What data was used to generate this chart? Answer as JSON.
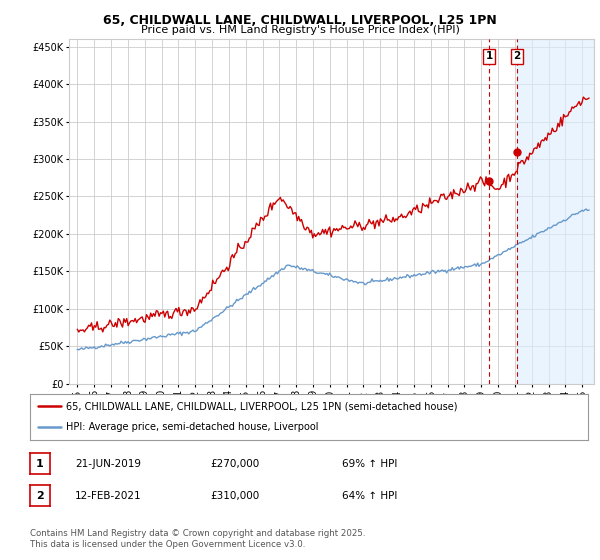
{
  "title_line1": "65, CHILDWALL LANE, CHILDWALL, LIVERPOOL, L25 1PN",
  "title_line2": "Price paid vs. HM Land Registry's House Price Index (HPI)",
  "legend_line1": "65, CHILDWALL LANE, CHILDWALL, LIVERPOOL, L25 1PN (semi-detached house)",
  "legend_line2": "HPI: Average price, semi-detached house, Liverpool",
  "footer": "Contains HM Land Registry data © Crown copyright and database right 2025.\nThis data is licensed under the Open Government Licence v3.0.",
  "sale1_date": "21-JUN-2019",
  "sale1_price": "£270,000",
  "sale1_hpi": "69% ↑ HPI",
  "sale2_date": "12-FEB-2021",
  "sale2_price": "£310,000",
  "sale2_hpi": "64% ↑ HPI",
  "red_color": "#cc0000",
  "blue_color": "#6699cc",
  "shade_color": "#ddeeff",
  "marker1_x": 2019.47,
  "marker1_y": 270000,
  "marker2_x": 2021.12,
  "marker2_y": 310000,
  "vline1_x": 2019.47,
  "vline2_x": 2021.12,
  "ylim_min": 0,
  "ylim_max": 460000,
  "xlim_min": 1994.5,
  "xlim_max": 2025.7,
  "yticks": [
    0,
    50000,
    100000,
    150000,
    200000,
    250000,
    300000,
    350000,
    400000,
    450000
  ],
  "ytick_labels": [
    "£0",
    "£50K",
    "£100K",
    "£150K",
    "£200K",
    "£250K",
    "£300K",
    "£350K",
    "£400K",
    "£450K"
  ],
  "background_color": "#ffffff",
  "grid_color": "#cccccc"
}
